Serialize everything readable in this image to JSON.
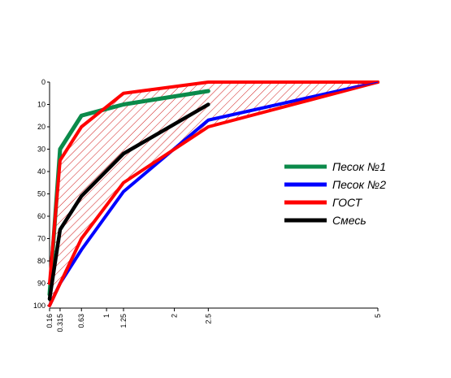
{
  "chart_data": {
    "type": "line",
    "title": "",
    "xlabel": "",
    "ylabel": "",
    "x_ticks": [
      {
        "value": 0.16,
        "label": "0.16"
      },
      {
        "value": 0.315,
        "label": "0.315"
      },
      {
        "value": 0.63,
        "label": "0.63"
      },
      {
        "value": 1,
        "label": "1"
      },
      {
        "value": 1.25,
        "label": "1.25"
      },
      {
        "value": 2,
        "label": "2"
      },
      {
        "value": 2.5,
        "label": "2.5"
      },
      {
        "value": 5,
        "label": "5"
      }
    ],
    "y_ticks": [
      0,
      10,
      20,
      30,
      40,
      50,
      60,
      70,
      80,
      90,
      100
    ],
    "xlim": [
      0.16,
      5
    ],
    "ylim": [
      0,
      100
    ],
    "y_inverted": true,
    "grid": false,
    "legend_position": "right",
    "shaded_zone": {
      "between": [
        "ГОСТ upper",
        "ГОСТ lower"
      ],
      "hatch_color": "#cc0000"
    },
    "series": [
      {
        "name": "Песок №1",
        "color": "#0b8a4a",
        "x": [
          0.16,
          0.315,
          0.63,
          1.25,
          2.5
        ],
        "y": [
          95,
          30,
          15,
          10,
          4
        ]
      },
      {
        "name": "Песок №2",
        "color": "#0000ff",
        "x": [
          0.16,
          0.315,
          0.63,
          1.25,
          2.5,
          5
        ],
        "y": [
          100,
          90,
          75,
          49,
          17,
          0
        ]
      },
      {
        "name": "ГОСТ",
        "color": "#ff0000",
        "x": [
          0.16,
          0.315,
          0.63,
          1.25,
          2.5,
          5
        ],
        "y": [
          90,
          35,
          20,
          5,
          0,
          0
        ]
      },
      {
        "name": "",
        "legend": false,
        "color": "#ff0000",
        "x": [
          0.16,
          0.63,
          1.25,
          2.5,
          5
        ],
        "y": [
          100,
          70,
          45,
          20,
          0
        ]
      },
      {
        "name": "Смесь",
        "color": "#000000",
        "x": [
          0.16,
          0.315,
          0.63,
          1.25,
          2.5
        ],
        "y": [
          97,
          66,
          51,
          32,
          10
        ]
      }
    ]
  }
}
